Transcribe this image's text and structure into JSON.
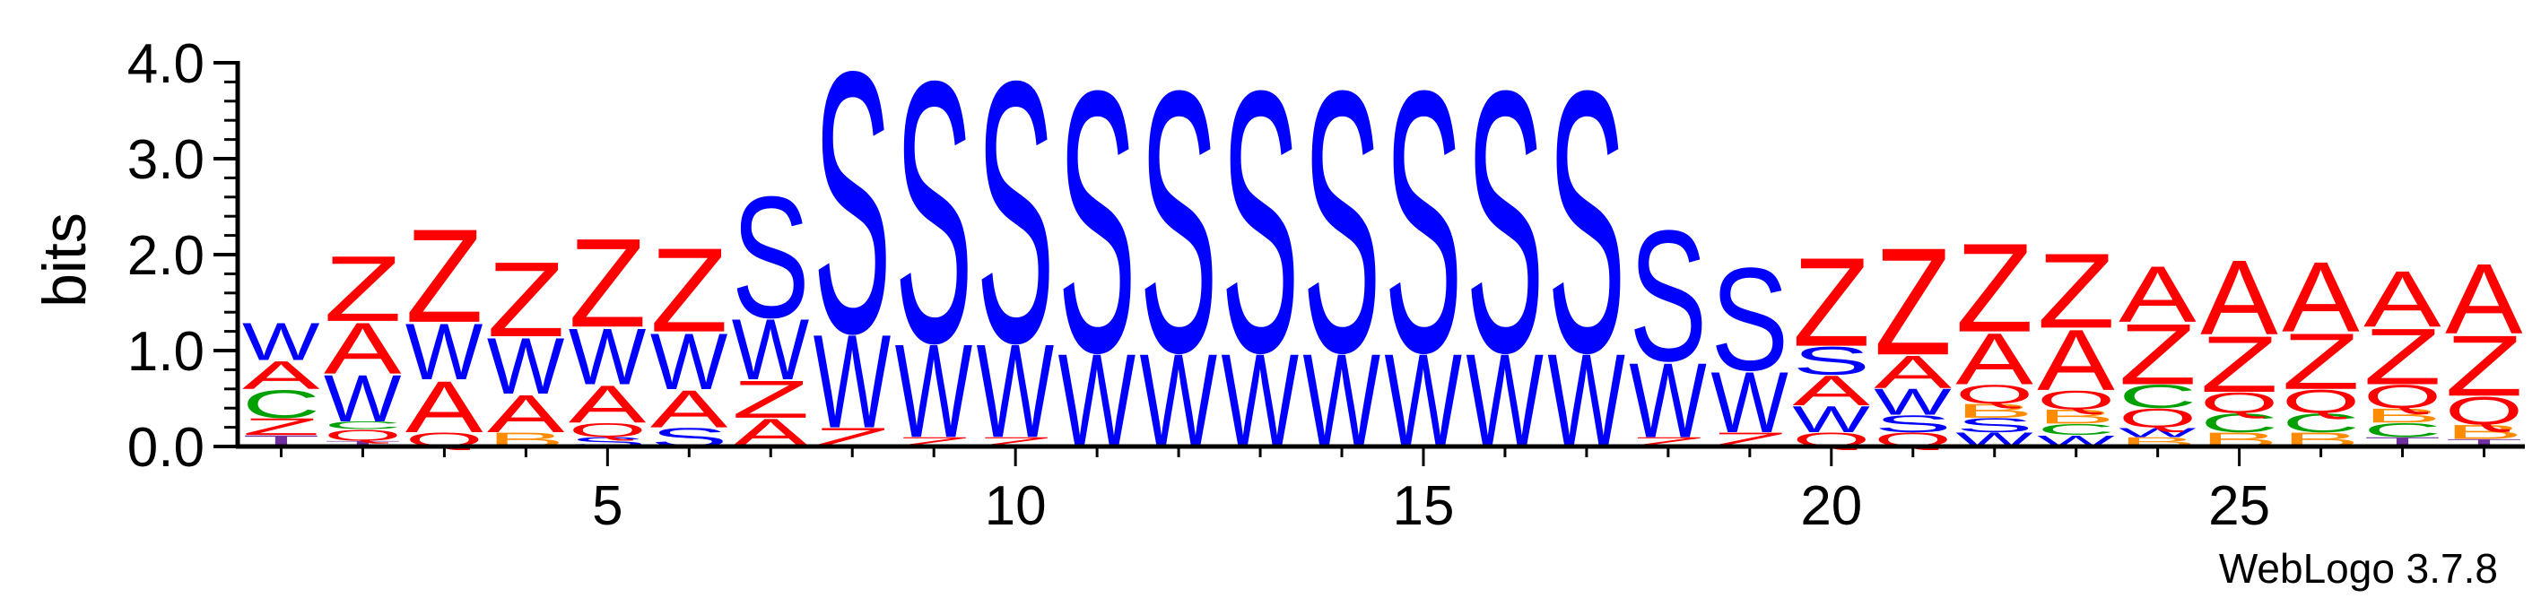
{
  "colors": {
    "S": "#0000ff",
    "W": "#0000ff",
    "Z": "#ff0000",
    "A": "#ff0000",
    "Q": "#ff0000",
    "C": "#00a000",
    "B": "#ff8c00",
    "T": "#7030a0",
    "axis": "#000000"
  },
  "chart_data": {
    "type": "sequence-logo",
    "xlabel": "",
    "ylabel": "bits",
    "ylim": [
      0,
      4
    ],
    "yticks": [
      "0.0",
      "1.0",
      "2.0",
      "3.0",
      "4.0"
    ],
    "xlim": [
      0.5,
      28.5
    ],
    "xticks": [
      5,
      10,
      15,
      20,
      25
    ],
    "footer": "WebLogo 3.7.8",
    "positions": [
      {
        "pos": 1,
        "stack": [
          [
            "T",
            0.12
          ],
          [
            "Z",
            0.18
          ],
          [
            "C",
            0.3
          ],
          [
            "A",
            0.3
          ],
          [
            "W",
            0.4
          ]
        ]
      },
      {
        "pos": 2,
        "stack": [
          [
            "T",
            0.06
          ],
          [
            "Q",
            0.12
          ],
          [
            "C",
            0.08
          ],
          [
            "W",
            0.5
          ],
          [
            "A",
            0.55
          ],
          [
            "Z",
            0.7
          ]
        ]
      },
      {
        "pos": 3,
        "stack": [
          [
            "Q",
            0.15
          ],
          [
            "A",
            0.55
          ],
          [
            "W",
            0.6
          ],
          [
            "Z",
            1.0
          ]
        ]
      },
      {
        "pos": 4,
        "stack": [
          [
            "B",
            0.15
          ],
          [
            "A",
            0.4
          ],
          [
            "W",
            0.6
          ],
          [
            "Z",
            0.8
          ]
        ]
      },
      {
        "pos": 5,
        "stack": [
          [
            "S",
            0.1
          ],
          [
            "Q",
            0.15
          ],
          [
            "A",
            0.4
          ],
          [
            "W",
            0.6
          ],
          [
            "Z",
            0.95
          ]
        ]
      },
      {
        "pos": 6,
        "stack": [
          [
            "S",
            0.2
          ],
          [
            "A",
            0.4
          ],
          [
            "W",
            0.6
          ],
          [
            "Z",
            0.9
          ]
        ]
      },
      {
        "pos": 7,
        "stack": [
          [
            "A",
            0.3
          ],
          [
            "Z",
            0.4
          ],
          [
            "W",
            0.65
          ],
          [
            "S",
            1.3
          ]
        ]
      },
      {
        "pos": 8,
        "stack": [
          [
            "Z",
            0.2
          ],
          [
            "W",
            1.0
          ],
          [
            "S",
            2.8
          ]
        ]
      },
      {
        "pos": 9,
        "stack": [
          [
            "Z",
            0.1
          ],
          [
            "W",
            1.0
          ],
          [
            "S",
            2.8
          ]
        ]
      },
      {
        "pos": 10,
        "stack": [
          [
            "Z",
            0.1
          ],
          [
            "W",
            1.0
          ],
          [
            "S",
            2.8
          ]
        ]
      },
      {
        "pos": 11,
        "stack": [
          [
            "W",
            1.0
          ],
          [
            "S",
            2.8
          ]
        ]
      },
      {
        "pos": 12,
        "stack": [
          [
            "W",
            1.0
          ],
          [
            "S",
            2.8
          ]
        ]
      },
      {
        "pos": 13,
        "stack": [
          [
            "W",
            1.0
          ],
          [
            "S",
            2.8
          ]
        ]
      },
      {
        "pos": 14,
        "stack": [
          [
            "W",
            1.0
          ],
          [
            "S",
            2.8
          ]
        ]
      },
      {
        "pos": 15,
        "stack": [
          [
            "W",
            1.0
          ],
          [
            "S",
            2.8
          ]
        ]
      },
      {
        "pos": 16,
        "stack": [
          [
            "W",
            1.0
          ],
          [
            "S",
            2.8
          ]
        ]
      },
      {
        "pos": 17,
        "stack": [
          [
            "W",
            1.0
          ],
          [
            "S",
            2.8
          ]
        ]
      },
      {
        "pos": 18,
        "stack": [
          [
            "Z",
            0.1
          ],
          [
            "W",
            0.8
          ],
          [
            "S",
            1.4
          ]
        ]
      },
      {
        "pos": 19,
        "stack": [
          [
            "Z",
            0.15
          ],
          [
            "W",
            0.65
          ],
          [
            "S",
            1.1
          ]
        ]
      },
      {
        "pos": 20,
        "stack": [
          [
            "Q",
            0.15
          ],
          [
            "W",
            0.28
          ],
          [
            "A",
            0.32
          ],
          [
            "S",
            0.3
          ],
          [
            "Z",
            0.95
          ]
        ]
      },
      {
        "pos": 21,
        "stack": [
          [
            "Q",
            0.15
          ],
          [
            "S",
            0.18
          ],
          [
            "W",
            0.28
          ],
          [
            "A",
            0.35
          ],
          [
            "Z",
            1.15
          ]
        ]
      },
      {
        "pos": 22,
        "stack": [
          [
            "W",
            0.15
          ],
          [
            "S",
            0.15
          ],
          [
            "B",
            0.15
          ],
          [
            "Q",
            0.2
          ],
          [
            "A",
            0.55
          ],
          [
            "Z",
            0.95
          ]
        ]
      },
      {
        "pos": 23,
        "stack": [
          [
            "W",
            0.12
          ],
          [
            "C",
            0.12
          ],
          [
            "B",
            0.15
          ],
          [
            "Q",
            0.2
          ],
          [
            "A",
            0.65
          ],
          [
            "Z",
            0.8
          ]
        ]
      },
      {
        "pos": 24,
        "stack": [
          [
            "B",
            0.1
          ],
          [
            "W",
            0.1
          ],
          [
            "Q",
            0.2
          ],
          [
            "C",
            0.25
          ],
          [
            "Z",
            0.65
          ],
          [
            "A",
            0.6
          ]
        ]
      },
      {
        "pos": 25,
        "stack": [
          [
            "B",
            0.15
          ],
          [
            "C",
            0.2
          ],
          [
            "Q",
            0.22
          ],
          [
            "Z",
            0.6
          ],
          [
            "A",
            0.8
          ]
        ]
      },
      {
        "pos": 26,
        "stack": [
          [
            "B",
            0.15
          ],
          [
            "C",
            0.2
          ],
          [
            "Q",
            0.25
          ],
          [
            "Z",
            0.6
          ],
          [
            "A",
            0.75
          ]
        ]
      },
      {
        "pos": 27,
        "stack": [
          [
            "T",
            0.1
          ],
          [
            "C",
            0.15
          ],
          [
            "B",
            0.15
          ],
          [
            "Q",
            0.25
          ],
          [
            "Z",
            0.6
          ],
          [
            "A",
            0.6
          ]
        ]
      },
      {
        "pos": 28,
        "stack": [
          [
            "T",
            0.08
          ],
          [
            "B",
            0.15
          ],
          [
            "Q",
            0.3
          ],
          [
            "Z",
            0.65
          ],
          [
            "A",
            0.75
          ]
        ]
      }
    ]
  }
}
